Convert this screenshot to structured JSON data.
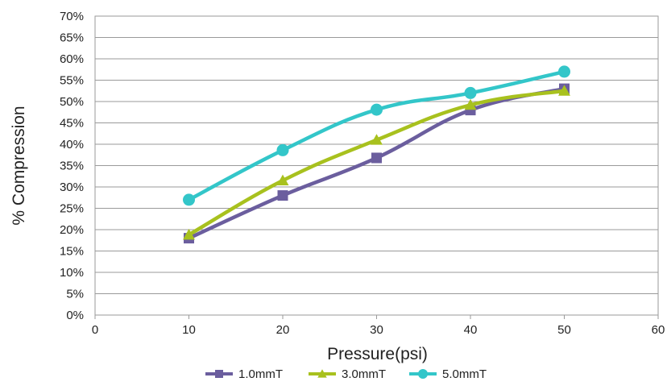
{
  "chart_data": {
    "type": "line",
    "xlabel": "Pressure(psi)",
    "ylabel": "% Compression",
    "xlim": [
      0,
      60
    ],
    "ylim": [
      0,
      70
    ],
    "x_ticks": [
      "0",
      "10",
      "20",
      "30",
      "40",
      "50",
      "60"
    ],
    "y_ticks": [
      "0%",
      "5%",
      "10%",
      "15%",
      "20%",
      "25%",
      "30%",
      "35%",
      "40%",
      "45%",
      "50%",
      "55%",
      "60%",
      "65%",
      "70%"
    ],
    "grid": "horizontal",
    "legend_position": "bottom",
    "x": [
      10,
      20,
      30,
      40,
      50
    ],
    "series": [
      {
        "name": "1.0mmT",
        "values": [
          18,
          28,
          36.8,
          48,
          53
        ],
        "color": "#6b5e9e",
        "marker": "square"
      },
      {
        "name": "3.0mmT",
        "values": [
          18.8,
          31.5,
          41,
          49.2,
          52.5
        ],
        "color": "#a8c11e",
        "marker": "triangle"
      },
      {
        "name": "5.0mmT",
        "values": [
          27,
          38.6,
          48.1,
          52,
          57
        ],
        "color": "#33c6c9",
        "marker": "circle"
      }
    ]
  }
}
